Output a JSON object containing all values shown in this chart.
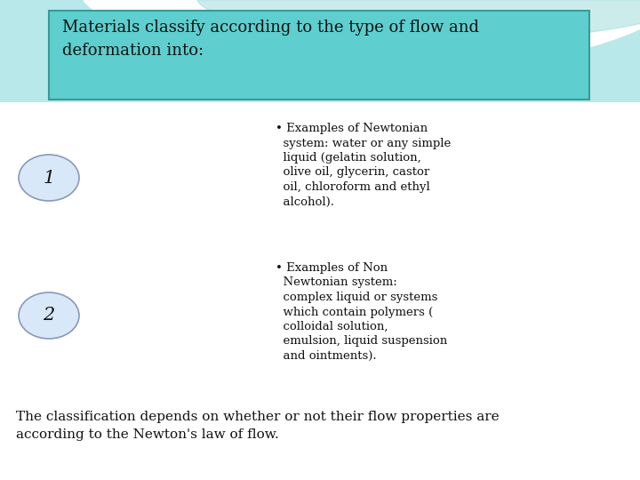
{
  "title_text": "Materials classify according to the type of flow and\ndeformation into:",
  "title_box_facecolor": "#5ecece",
  "title_box_edgecolor": "#3a9999",
  "background_color": "#ffffff",
  "ellipse1_label": "1",
  "ellipse2_label": "2",
  "ellipse_fill_top": "#d8e8f8",
  "ellipse_fill_bottom": "#a0b8e0",
  "ellipse_edge": "#8899bb",
  "text1_bullet": "• Examples of Newtonian\n  system: water or any simple\n  liquid (gelatin solution,\n  olive oil, glycerin, castor\n  oil, chloroform and ethyl\n  alcohol).",
  "text2_bullet": "• Examples of Non\n  Newtonian system:\n  complex liquid or systems\n  which contain polymers (\n  colloidal solution,\n  emulsion, liquid suspension\n  and ointments).",
  "footer_text": "The classification depends on whether or not their flow properties are\naccording to the Newton's law of flow.",
  "title_fontsize": 13,
  "body_fontsize": 9.5,
  "footer_fontsize": 11,
  "ellipse_num_fontsize": 15,
  "teal_wave1": "#7dd8d8",
  "teal_wave2": "#a8e4e4",
  "teal_wave3": "#c0ecec"
}
